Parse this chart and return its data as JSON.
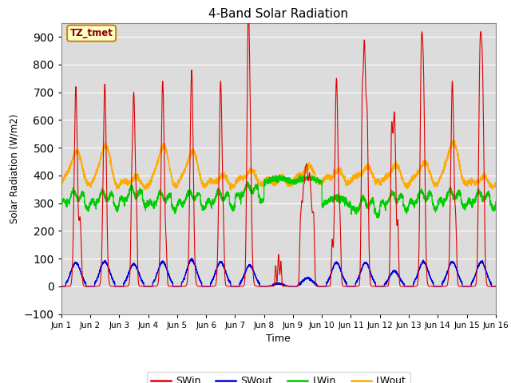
{
  "title": "4-Band Solar Radiation",
  "xlabel": "Time",
  "ylabel": "Solar Radiation (W/m2)",
  "xlim": [
    0,
    15
  ],
  "ylim": [
    -100,
    950
  ],
  "yticks": [
    -100,
    0,
    100,
    200,
    300,
    400,
    500,
    600,
    700,
    800,
    900
  ],
  "xtick_labels": [
    "Jun 1",
    "Jun 2",
    "Jun 3",
    "Jun 4",
    "Jun 5",
    "Jun 6",
    "Jun 7",
    "Jun 8",
    "Jun 9",
    "Jun 10",
    "Jun 11",
    "Jun 12",
    "Jun 13",
    "Jun 14",
    "Jun 15",
    "Jun 16"
  ],
  "colors": {
    "SWin": "#dd0000",
    "SWout": "#0000dd",
    "LWin": "#00cc00",
    "LWout": "#ffaa00"
  },
  "legend_labels": [
    "SWin",
    "SWout",
    "LWin",
    "LWout"
  ],
  "legend_colors": [
    "#dd0000",
    "#0000dd",
    "#00cc00",
    "#ffaa00"
  ],
  "bg_color": "#dcdcdc",
  "annotation_text": "TZ_tmet",
  "annotation_bg": "#ffffcc",
  "annotation_border": "#cc8800"
}
